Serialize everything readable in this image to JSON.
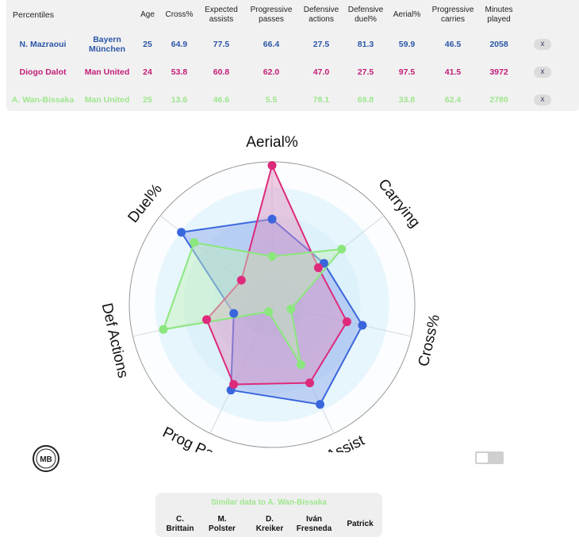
{
  "table": {
    "title": "Percentiles",
    "headers": [
      "Age",
      "Cross%",
      "Expected assists",
      "Progressive passes",
      "Defensive actions",
      "Defensive duel%",
      "Aerial%",
      "Progressive carries",
      "Minutes played"
    ],
    "remove_label": "x",
    "rows": [
      {
        "name": "N. Mazraoui",
        "team": "Bayern München",
        "color": "#2b57a8",
        "cells": [
          "25",
          "64.9",
          "77.5",
          "66.4",
          "27.5",
          "81.3",
          "59.9",
          "46.5",
          "2058"
        ]
      },
      {
        "name": "Diogo Dalot",
        "team": "Man United",
        "color": "#c21d78",
        "cells": [
          "24",
          "53.8",
          "60.8",
          "62.0",
          "47.0",
          "27.5",
          "97.5",
          "41.5",
          "3972"
        ]
      },
      {
        "name": "A. Wan-Bissaka",
        "team": "Man United",
        "color": "#9ee68d",
        "cells": [
          "25",
          "13.6",
          "46.6",
          "5.5",
          "78.1",
          "69.8",
          "33.8",
          "62.4",
          "2780"
        ]
      }
    ]
  },
  "chart_data": {
    "type": "radar",
    "axes": [
      "Aerial%",
      "Carrying",
      "Cross%",
      "xAssist",
      "Prog Passes",
      "Def Actions",
      "Duel%"
    ],
    "range": [
      0,
      100
    ],
    "series": [
      {
        "name": "N. Mazraoui",
        "color": "#3a66dd",
        "fill": "#8aa5ee",
        "values": [
          59.9,
          46.5,
          64.9,
          77.5,
          66.4,
          27.5,
          81.3
        ]
      },
      {
        "name": "Diogo Dalot",
        "color": "#dd2a7b",
        "fill": "#e08fbe",
        "values": [
          97.5,
          41.5,
          53.8,
          60.8,
          62.0,
          47.0,
          27.5
        ]
      },
      {
        "name": "A. Wan-Bissaka",
        "color": "#8be77d",
        "fill": "#c3f2b8",
        "values": [
          33.8,
          62.4,
          13.6,
          46.6,
          5.5,
          78.1,
          69.8
        ]
      }
    ]
  },
  "logo": {
    "text": "MB"
  },
  "similar": {
    "title": "Similar data to A. Wan-Bissaka",
    "players": [
      [
        "C.",
        "Brittain"
      ],
      [
        "M.",
        "Polster"
      ],
      [
        "D.",
        "Kreiker"
      ],
      [
        "Iván",
        "Fresneda"
      ],
      [
        "Patrick"
      ]
    ]
  }
}
